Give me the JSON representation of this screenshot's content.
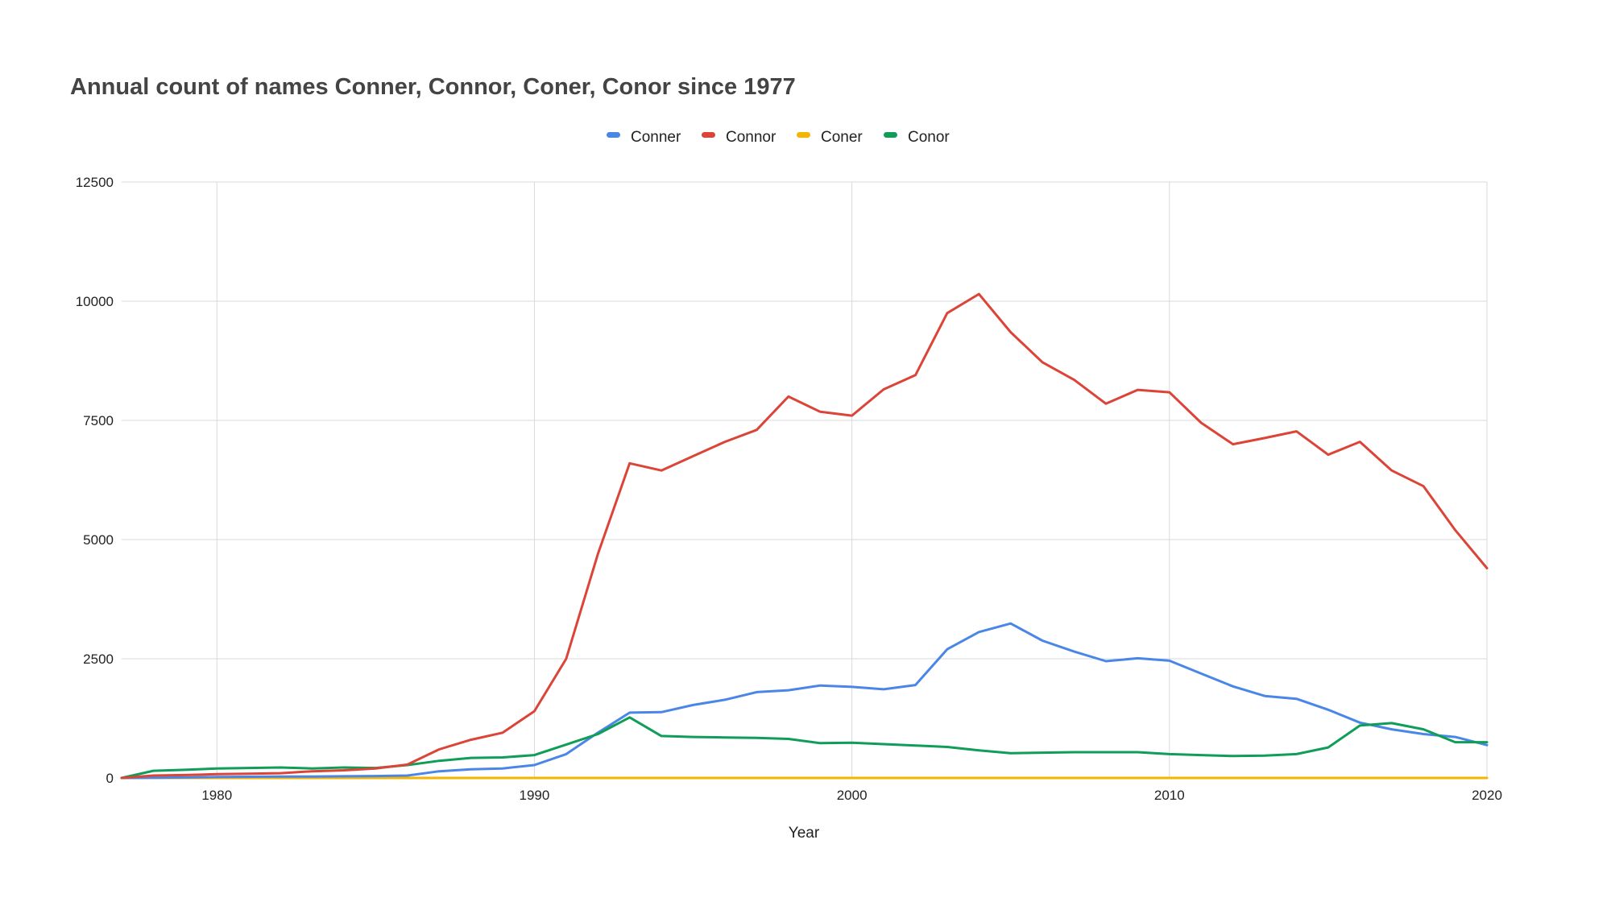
{
  "chart_data": {
    "type": "line",
    "title": "Annual count of names Conner, Connor, Coner, Conor since 1977",
    "xlabel": "Year",
    "ylabel": "",
    "xlim": [
      1977,
      2020
    ],
    "ylim": [
      0,
      12500
    ],
    "x_ticks": [
      "1980",
      "1990",
      "2000",
      "2010",
      "2020"
    ],
    "y_ticks": [
      "0",
      "2500",
      "5000",
      "7500",
      "10000",
      "12500"
    ],
    "grid": true,
    "legend_position": "top",
    "x": [
      1977,
      1978,
      1979,
      1980,
      1981,
      1982,
      1983,
      1984,
      1985,
      1986,
      1987,
      1988,
      1989,
      1990,
      1991,
      1992,
      1993,
      1994,
      1995,
      1996,
      1997,
      1998,
      1999,
      2000,
      2001,
      2002,
      2003,
      2004,
      2005,
      2006,
      2007,
      2008,
      2009,
      2010,
      2011,
      2012,
      2013,
      2014,
      2015,
      2016,
      2017,
      2018,
      2019,
      2020
    ],
    "series": [
      {
        "name": "Conner",
        "color": "#4a86e8",
        "values": [
          0,
          5,
          10,
          20,
          25,
          28,
          30,
          35,
          40,
          50,
          140,
          180,
          200,
          270,
          500,
          950,
          1370,
          1380,
          1530,
          1640,
          1800,
          1840,
          1940,
          1910,
          1860,
          1950,
          2700,
          3060,
          3240,
          2880,
          2650,
          2450,
          2510,
          2460,
          2190,
          1920,
          1720,
          1660,
          1430,
          1160,
          1020,
          920,
          860,
          690
        ]
      },
      {
        "name": "Connor",
        "color": "#db4437",
        "values": [
          0,
          50,
          60,
          80,
          90,
          100,
          140,
          160,
          200,
          280,
          600,
          800,
          950,
          1400,
          2500,
          4700,
          6600,
          6450,
          6750,
          7050,
          7300,
          8000,
          7680,
          7600,
          8150,
          8450,
          9750,
          10150,
          9350,
          8720,
          8350,
          7850,
          8140,
          8090,
          7450,
          7000,
          7130,
          7270,
          6780,
          7050,
          6450,
          6120,
          5200,
          4400
        ]
      },
      {
        "name": "Coner",
        "color": "#f4b400",
        "values": [
          0,
          0,
          0,
          0,
          0,
          0,
          0,
          0,
          0,
          0,
          0,
          0,
          0,
          0,
          0,
          0,
          0,
          0,
          0,
          0,
          0,
          0,
          0,
          0,
          0,
          0,
          0,
          0,
          0,
          0,
          0,
          0,
          0,
          0,
          0,
          0,
          0,
          0,
          0,
          0,
          0,
          0,
          0,
          0
        ]
      },
      {
        "name": "Conor",
        "color": "#0f9d58",
        "values": [
          0,
          150,
          170,
          200,
          210,
          220,
          200,
          220,
          210,
          270,
          360,
          420,
          430,
          480,
          700,
          920,
          1270,
          880,
          860,
          850,
          840,
          820,
          730,
          740,
          710,
          680,
          650,
          580,
          520,
          530,
          540,
          540,
          540,
          500,
          480,
          460,
          470,
          500,
          640,
          1100,
          1150,
          1020,
          750,
          750
        ]
      }
    ]
  }
}
